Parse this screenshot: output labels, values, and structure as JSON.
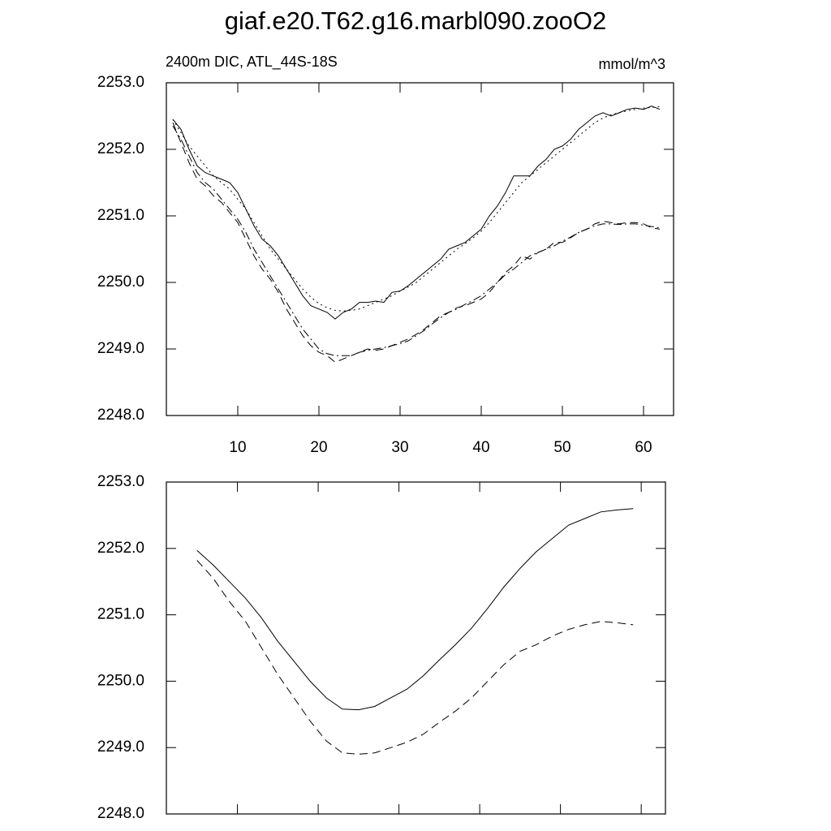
{
  "chart_data": [
    {
      "type": "line",
      "title": "giaf.e20.T62.g16.marbl090.zooO2",
      "left_subtitle": "2400m DIC, ATL_44S-18S",
      "right_subtitle": "mmol/m^3",
      "x": [
        2,
        3,
        4,
        5,
        6,
        7,
        8,
        9,
        10,
        11,
        12,
        13,
        14,
        15,
        16,
        17,
        18,
        19,
        20,
        21,
        22,
        23,
        24,
        25,
        26,
        27,
        28,
        29,
        30,
        31,
        32,
        33,
        34,
        35,
        36,
        37,
        38,
        39,
        40,
        41,
        42,
        43,
        44,
        45,
        46,
        47,
        48,
        49,
        50,
        51,
        52,
        53,
        54,
        55,
        56,
        57,
        58,
        59,
        60,
        61,
        62
      ],
      "series": [
        {
          "color": "#000000",
          "dash": "solid",
          "values": [
            2252.45,
            2252.3,
            2252.0,
            2251.75,
            2251.65,
            2251.6,
            2251.55,
            2251.5,
            2251.35,
            2251.1,
            2250.85,
            2250.65,
            2250.55,
            2250.4,
            2250.2,
            2250.0,
            2249.8,
            2249.65,
            2249.6,
            2249.55,
            2249.45,
            2249.55,
            2249.6,
            2249.7,
            2249.7,
            2249.72,
            2249.7,
            2249.85,
            2249.87,
            2249.95,
            2250.05,
            2250.15,
            2250.25,
            2250.35,
            2250.5,
            2250.55,
            2250.6,
            2250.7,
            2250.8,
            2251.0,
            2251.15,
            2251.35,
            2251.6,
            2251.6,
            2251.6,
            2251.75,
            2251.85,
            2252.0,
            2252.05,
            2252.15,
            2252.3,
            2252.4,
            2252.5,
            2252.55,
            2252.5,
            2252.55,
            2252.6,
            2252.62,
            2252.6,
            2252.65,
            2252.6
          ]
        },
        {
          "color": "#000000",
          "dash": "dot",
          "values": [
            2252.45,
            2252.25,
            2252.05,
            2251.9,
            2251.75,
            2251.6,
            2251.5,
            2251.4,
            2251.25,
            2251.1,
            2250.9,
            2250.7,
            2250.5,
            2250.35,
            2250.2,
            2250.05,
            2249.9,
            2249.78,
            2249.68,
            2249.62,
            2249.58,
            2249.57,
            2249.58,
            2249.6,
            2249.65,
            2249.7,
            2249.75,
            2249.8,
            2249.87,
            2249.93,
            2250.0,
            2250.1,
            2250.2,
            2250.3,
            2250.4,
            2250.5,
            2250.58,
            2250.67,
            2250.77,
            2250.9,
            2251.05,
            2251.2,
            2251.35,
            2251.5,
            2251.6,
            2251.7,
            2251.8,
            2251.9,
            2252.0,
            2252.1,
            2252.2,
            2252.3,
            2252.4,
            2252.47,
            2252.52,
            2252.55,
            2252.58,
            2252.6,
            2252.62,
            2252.63,
            2252.64
          ]
        },
        {
          "color": "#000000",
          "dash": "dash",
          "values": [
            2252.4,
            2252.1,
            2251.8,
            2251.55,
            2251.45,
            2251.3,
            2251.2,
            2251.05,
            2250.9,
            2250.65,
            2250.4,
            2250.2,
            2250.05,
            2249.85,
            2249.6,
            2249.4,
            2249.2,
            2249.05,
            2248.95,
            2248.9,
            2248.8,
            2248.85,
            2248.9,
            2248.95,
            2249.0,
            2248.98,
            2249.0,
            2249.05,
            2249.1,
            2249.15,
            2249.22,
            2249.3,
            2249.4,
            2249.5,
            2249.55,
            2249.62,
            2249.65,
            2249.7,
            2249.75,
            2249.85,
            2250.0,
            2250.15,
            2250.25,
            2250.4,
            2250.35,
            2250.45,
            2250.5,
            2250.6,
            2250.6,
            2250.67,
            2250.75,
            2250.8,
            2250.88,
            2250.92,
            2250.9,
            2250.88,
            2250.9,
            2250.9,
            2250.88,
            2250.82,
            2250.8
          ]
        },
        {
          "color": "#000000",
          "dash": "dashdot",
          "values": [
            2252.35,
            2252.15,
            2251.9,
            2251.65,
            2251.5,
            2251.4,
            2251.25,
            2251.1,
            2250.95,
            2250.75,
            2250.5,
            2250.3,
            2250.1,
            2249.9,
            2249.7,
            2249.5,
            2249.3,
            2249.15,
            2249.0,
            2248.93,
            2248.9,
            2248.9,
            2248.9,
            2248.95,
            2248.98,
            2249.0,
            2249.02,
            2249.05,
            2249.08,
            2249.12,
            2249.2,
            2249.28,
            2249.38,
            2249.47,
            2249.55,
            2249.6,
            2249.67,
            2249.73,
            2249.8,
            2249.9,
            2250.0,
            2250.12,
            2250.2,
            2250.3,
            2250.4,
            2250.45,
            2250.5,
            2250.55,
            2250.62,
            2250.68,
            2250.75,
            2250.8,
            2250.85,
            2250.88,
            2250.88,
            2250.87,
            2250.88,
            2250.88,
            2250.86,
            2250.84,
            2250.82
          ]
        }
      ],
      "xlim": [
        1.2,
        63.7
      ],
      "xticks": [
        10,
        20,
        30,
        40,
        50,
        60
      ],
      "xtick_labels_shown": true,
      "ylim": [
        2248,
        2253
      ],
      "yticks": [
        {
          "value": 2248,
          "label": "2248.0"
        },
        {
          "value": 2249,
          "label": "2249.0"
        },
        {
          "value": 2250,
          "label": "2250.0"
        },
        {
          "value": 2251,
          "label": "2251.0"
        },
        {
          "value": 2252,
          "label": "2252.0"
        },
        {
          "value": 2253,
          "label": "2253.0"
        }
      ]
    },
    {
      "type": "line",
      "x": [
        5,
        7,
        9,
        11,
        13,
        15,
        17,
        19,
        21,
        23,
        25,
        27,
        29,
        31,
        33,
        35,
        37,
        39,
        41,
        43,
        45,
        47,
        49,
        51,
        53,
        55,
        57,
        59
      ],
      "series": [
        {
          "color": "#000000",
          "dash": "solid",
          "values": [
            2251.97,
            2251.75,
            2251.5,
            2251.25,
            2250.95,
            2250.6,
            2250.3,
            2250.0,
            2249.75,
            2249.58,
            2249.57,
            2249.62,
            2249.75,
            2249.88,
            2250.08,
            2250.32,
            2250.55,
            2250.8,
            2251.1,
            2251.42,
            2251.7,
            2251.95,
            2252.15,
            2252.35,
            2252.45,
            2252.55,
            2252.58,
            2252.6
          ]
        },
        {
          "color": "#000000",
          "dash": "dash",
          "values": [
            2251.82,
            2251.55,
            2251.2,
            2250.9,
            2250.5,
            2250.1,
            2249.75,
            2249.4,
            2249.1,
            2248.92,
            2248.9,
            2248.92,
            2249.0,
            2249.08,
            2249.2,
            2249.38,
            2249.55,
            2249.75,
            2250.0,
            2250.25,
            2250.45,
            2250.55,
            2250.68,
            2250.78,
            2250.85,
            2250.9,
            2250.88,
            2250.85
          ]
        }
      ],
      "xlim": [
        1.2,
        63.0
      ],
      "xticks": [
        10,
        20,
        30,
        40,
        50,
        60
      ],
      "xtick_labels_shown": false,
      "ylim": [
        2248,
        2253
      ],
      "yticks": [
        {
          "value": 2248,
          "label": "2248.0"
        },
        {
          "value": 2249,
          "label": "2249.0"
        },
        {
          "value": 2250,
          "label": "2250.0"
        },
        {
          "value": 2251,
          "label": "2251.0"
        },
        {
          "value": 2252,
          "label": "2252.0"
        },
        {
          "value": 2253,
          "label": "2253.0"
        }
      ]
    }
  ]
}
